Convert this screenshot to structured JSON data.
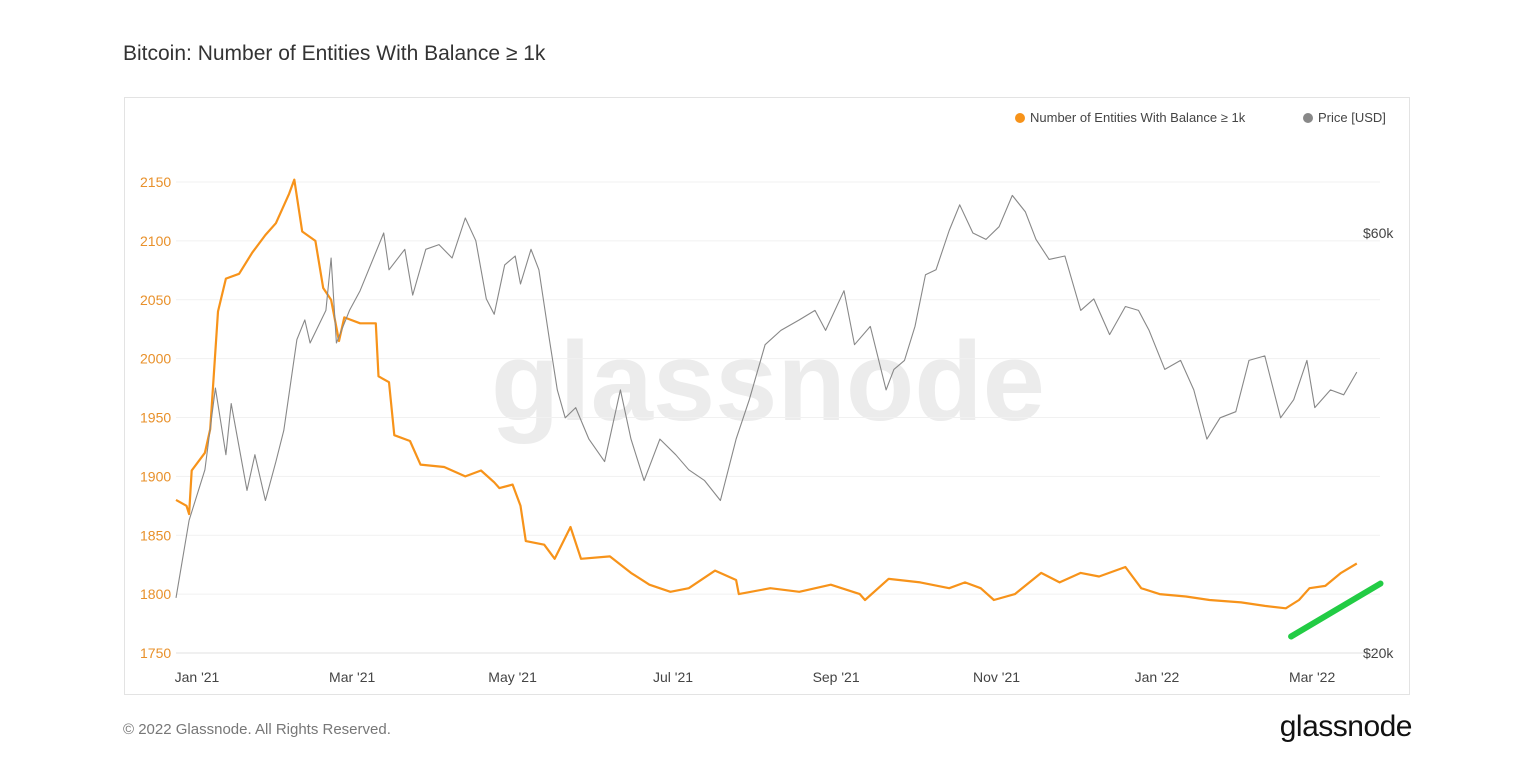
{
  "title": "Bitcoin: Number of Entities With Balance ≥ 1k",
  "footer": "© 2022 Glassnode. All Rights Reserved.",
  "logo": "glassnode",
  "watermark": "glassnode",
  "chart_data": {
    "type": "line",
    "title": "Bitcoin: Number of Entities With Balance ≥ 1k",
    "x_unit": "days since 2021-01-01",
    "x_ticks": [
      {
        "label": "Jan '21",
        "day": 0
      },
      {
        "label": "Mar '21",
        "day": 59
      },
      {
        "label": "May '21",
        "day": 120
      },
      {
        "label": "Jul '21",
        "day": 181
      },
      {
        "label": "Sep '21",
        "day": 243
      },
      {
        "label": "Nov '21",
        "day": 304
      },
      {
        "label": "Jan '22",
        "day": 365
      },
      {
        "label": "Mar '22",
        "day": 424
      }
    ],
    "left_axis": {
      "ylim": [
        1750,
        2150
      ],
      "ticks": [
        "2150",
        "2100",
        "2050",
        "2000",
        "1950",
        "1900",
        "1850",
        "1800",
        "1750"
      ],
      "color": "#e8902a"
    },
    "right_axis": {
      "scale": "log",
      "ylim_k": [
        20,
        60
      ],
      "ticks": [
        {
          "label": "$60k",
          "value": 60
        },
        {
          "label": "$20k",
          "value": 20
        }
      ]
    },
    "legend": {
      "position": "top-right",
      "items": [
        {
          "label": "Number of Entities With Balance ≥ 1k",
          "color": "#f7931a"
        },
        {
          "label": "Price [USD]",
          "color": "#888888"
        }
      ]
    },
    "series": [
      {
        "name": "Number of Entities With Balance ≥ 1k",
        "axis": "left",
        "color": "#f7931a",
        "x": [
          -8,
          -4,
          -3,
          -2,
          3,
          5,
          8,
          11,
          16,
          21,
          26,
          30,
          35,
          37,
          40,
          45,
          48,
          51,
          54,
          56,
          62,
          68,
          69,
          73,
          75,
          81,
          85,
          94,
          102,
          108,
          113,
          115,
          120,
          123,
          125,
          132,
          136,
          142,
          146,
          157,
          165,
          172,
          180,
          187,
          197,
          205,
          206,
          218,
          229,
          241,
          252,
          254,
          263,
          275,
          286,
          292,
          298,
          303,
          311,
          321,
          328,
          336,
          343,
          353,
          359,
          366,
          376,
          385,
          397,
          406,
          414,
          419,
          423,
          429,
          435,
          441
        ],
        "y": [
          1880,
          1875,
          1868,
          1905,
          1920,
          1940,
          2040,
          2068,
          2072,
          2090,
          2105,
          2115,
          2140,
          2152,
          2108,
          2100,
          2060,
          2050,
          2015,
          2035,
          2030,
          2030,
          1985,
          1980,
          1935,
          1930,
          1910,
          1908,
          1900,
          1905,
          1895,
          1890,
          1893,
          1875,
          1845,
          1842,
          1830,
          1857,
          1830,
          1832,
          1818,
          1808,
          1802,
          1805,
          1820,
          1812,
          1800,
          1805,
          1802,
          1808,
          1800,
          1795,
          1813,
          1810,
          1805,
          1810,
          1805,
          1795,
          1800,
          1818,
          1810,
          1818,
          1815,
          1823,
          1805,
          1800,
          1798,
          1795,
          1793,
          1790,
          1788,
          1795,
          1805,
          1807,
          1818,
          1826
        ]
      },
      {
        "name": "Price [USD]",
        "axis": "right",
        "unit": "k USD",
        "color": "#888888",
        "x": [
          -8,
          -3,
          3,
          7,
          11,
          13,
          19,
          22,
          26,
          30,
          33,
          38,
          41,
          43,
          49,
          51,
          53,
          58,
          62,
          71,
          73,
          79,
          82,
          87,
          92,
          97,
          102,
          106,
          110,
          113,
          117,
          121,
          123,
          127,
          130,
          134,
          137,
          140,
          144,
          149,
          155,
          161,
          165,
          170,
          176,
          182,
          187,
          193,
          199,
          205,
          210,
          216,
          222,
          229,
          235,
          239,
          246,
          250,
          256,
          262,
          265,
          269,
          273,
          277,
          281,
          286,
          290,
          295,
          300,
          305,
          310,
          315,
          319,
          324,
          330,
          336,
          341,
          347,
          353,
          358,
          362,
          368,
          374,
          379,
          384,
          389,
          395,
          400,
          406,
          412,
          417,
          422,
          425,
          431,
          436,
          441
        ],
        "y": [
          23.1,
          28.3,
          32.3,
          40.0,
          33.6,
          38.4,
          30.6,
          33.6,
          29.8,
          33.0,
          35.8,
          45.4,
          47.8,
          45.0,
          49.0,
          56.2,
          45.0,
          49.0,
          51.6,
          60.0,
          54.5,
          57.5,
          51.0,
          57.5,
          58.2,
          56.2,
          62.4,
          58.8,
          50.5,
          48.5,
          55.2,
          56.5,
          52.5,
          57.5,
          54.5,
          45.4,
          39.8,
          37.0,
          38.0,
          35.0,
          33.0,
          39.8,
          35.0,
          31.4,
          35.0,
          33.6,
          32.3,
          31.4,
          29.8,
          35.0,
          38.8,
          44.8,
          46.5,
          47.8,
          49.0,
          46.5,
          51.6,
          44.8,
          47.0,
          39.8,
          42.0,
          43.0,
          47.0,
          53.8,
          54.5,
          60.4,
          64.6,
          60.0,
          59.0,
          61.0,
          66.2,
          63.4,
          59.0,
          56.0,
          56.5,
          49.0,
          50.5,
          46.0,
          49.5,
          49.0,
          46.5,
          42.0,
          43.0,
          39.8,
          35.0,
          37.0,
          37.6,
          43.0,
          43.5,
          37.0,
          38.8,
          43.0,
          38.0,
          39.8,
          39.3,
          41.7
        ]
      }
    ],
    "annotations": [
      {
        "type": "trend-line",
        "color": "#22cc44",
        "from": {
          "day": 416,
          "value": 1764
        },
        "to": {
          "day": 450,
          "value": 1809
        }
      }
    ]
  }
}
